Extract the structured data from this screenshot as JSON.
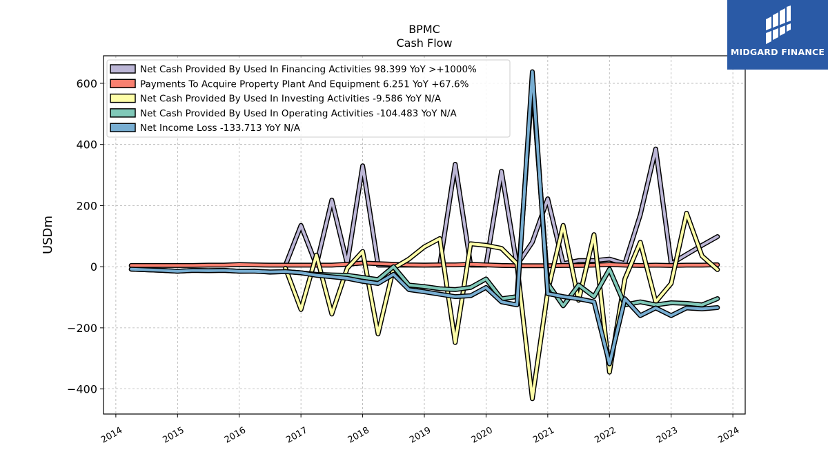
{
  "chart_data": {
    "type": "line",
    "title": "BPMC",
    "subtitle": "Cash Flow",
    "xlabel": "",
    "ylabel": "USDm",
    "grid": true,
    "legend_position": "top-left",
    "xlim": [
      2013.8,
      2024.2
    ],
    "ylim": [
      -482,
      690
    ],
    "x_ticks": [
      "2014",
      "2015",
      "2016",
      "2017",
      "2018",
      "2019",
      "2020",
      "2021",
      "2022",
      "2023",
      "2024"
    ],
    "y_ticks": [
      "600",
      "400",
      "200",
      "0",
      "−200",
      "−400"
    ],
    "y_tick_values": [
      600,
      400,
      200,
      0,
      -200,
      -400
    ],
    "series": [
      {
        "name": "Net Cash Provided By Used In Financing Activities",
        "legend": "Net Cash Provided By Used In Financing Activities  98.399 YoY >+1000%",
        "color": "#bcb6d6",
        "points": [
          [
            2016.75,
            5
          ],
          [
            2017.0,
            135
          ],
          [
            2017.25,
            5
          ],
          [
            2017.5,
            218
          ],
          [
            2017.75,
            10
          ],
          [
            2018.0,
            330
          ],
          [
            2018.25,
            5
          ],
          [
            2018.5,
            5
          ],
          [
            2018.75,
            5
          ],
          [
            2019.0,
            5
          ],
          [
            2019.25,
            5
          ],
          [
            2019.5,
            335
          ],
          [
            2019.75,
            5
          ],
          [
            2020.0,
            5
          ],
          [
            2020.25,
            312
          ],
          [
            2020.5,
            5
          ],
          [
            2020.75,
            80
          ],
          [
            2021.0,
            222
          ],
          [
            2021.25,
            10
          ],
          [
            2021.5,
            20
          ],
          [
            2021.75,
            20
          ],
          [
            2022.0,
            25
          ],
          [
            2022.25,
            10
          ],
          [
            2022.5,
            170
          ],
          [
            2022.75,
            385
          ],
          [
            2023.0,
            10
          ],
          [
            2023.25,
            40
          ],
          [
            2023.5,
            70
          ],
          [
            2023.75,
            98.399
          ]
        ]
      },
      {
        "name": "Payments To Acquire Property Plant And Equipment",
        "legend": "Payments To Acquire Property Plant And Equipment  6.251 YoY +67.6%",
        "color": "#f98070",
        "points": [
          [
            2014.25,
            4
          ],
          [
            2014.5,
            4
          ],
          [
            2014.75,
            4
          ],
          [
            2015.0,
            4
          ],
          [
            2015.25,
            4
          ],
          [
            2015.5,
            5
          ],
          [
            2015.75,
            5
          ],
          [
            2016.0,
            7
          ],
          [
            2016.25,
            6
          ],
          [
            2016.5,
            5
          ],
          [
            2016.75,
            5
          ],
          [
            2017.0,
            5
          ],
          [
            2017.25,
            5
          ],
          [
            2017.5,
            5
          ],
          [
            2017.75,
            8
          ],
          [
            2018.0,
            12
          ],
          [
            2018.25,
            10
          ],
          [
            2018.5,
            8
          ],
          [
            2018.75,
            6
          ],
          [
            2019.0,
            5
          ],
          [
            2019.25,
            6
          ],
          [
            2019.5,
            6
          ],
          [
            2019.75,
            8
          ],
          [
            2020.0,
            6
          ],
          [
            2020.25,
            4
          ],
          [
            2020.5,
            3
          ],
          [
            2020.75,
            3
          ],
          [
            2021.0,
            3
          ],
          [
            2021.25,
            4
          ],
          [
            2021.5,
            4
          ],
          [
            2021.75,
            5
          ],
          [
            2022.0,
            7
          ],
          [
            2022.25,
            5
          ],
          [
            2022.5,
            4
          ],
          [
            2022.75,
            5
          ],
          [
            2023.0,
            4
          ],
          [
            2023.25,
            5
          ],
          [
            2023.5,
            5
          ],
          [
            2023.75,
            6.251
          ]
        ]
      },
      {
        "name": "Net Cash Provided By Used In Investing Activities",
        "legend": "Net Cash Provided By Used In Investing Activities  -9.586 YoY N/A",
        "color": "#fefea8",
        "points": [
          [
            2016.75,
            -5
          ],
          [
            2017.0,
            -140
          ],
          [
            2017.25,
            38
          ],
          [
            2017.5,
            -155
          ],
          [
            2017.75,
            -5
          ],
          [
            2018.0,
            50
          ],
          [
            2018.25,
            -220
          ],
          [
            2018.5,
            -5
          ],
          [
            2018.75,
            25
          ],
          [
            2019.0,
            65
          ],
          [
            2019.25,
            92
          ],
          [
            2019.5,
            -248
          ],
          [
            2019.75,
            75
          ],
          [
            2020.0,
            70
          ],
          [
            2020.25,
            60
          ],
          [
            2020.5,
            10
          ],
          [
            2020.75,
            -432
          ],
          [
            2021.0,
            -80
          ],
          [
            2021.25,
            135
          ],
          [
            2021.5,
            -110
          ],
          [
            2021.75,
            105
          ],
          [
            2022.0,
            -345
          ],
          [
            2022.25,
            -40
          ],
          [
            2022.5,
            80
          ],
          [
            2022.75,
            -115
          ],
          [
            2023.0,
            -55
          ],
          [
            2023.25,
            175
          ],
          [
            2023.5,
            35
          ],
          [
            2023.75,
            -9.586
          ]
        ]
      },
      {
        "name": "Net Cash Provided By Used In Operating Activities",
        "legend": "Net Cash Provided By Used In Operating Activities  -104.483 YoY N/A",
        "color": "#80c8b8",
        "points": [
          [
            2014.25,
            -8
          ],
          [
            2014.5,
            -10
          ],
          [
            2014.75,
            -12
          ],
          [
            2015.0,
            -15
          ],
          [
            2015.25,
            -12
          ],
          [
            2015.5,
            -13
          ],
          [
            2015.75,
            -12
          ],
          [
            2016.0,
            -15
          ],
          [
            2016.25,
            -14
          ],
          [
            2016.5,
            -18
          ],
          [
            2016.75,
            -16
          ],
          [
            2017.0,
            -20
          ],
          [
            2017.25,
            -25
          ],
          [
            2017.5,
            -27
          ],
          [
            2017.75,
            -28
          ],
          [
            2018.0,
            -35
          ],
          [
            2018.25,
            -42
          ],
          [
            2018.5,
            0
          ],
          [
            2018.75,
            -60
          ],
          [
            2019.0,
            -65
          ],
          [
            2019.25,
            -72
          ],
          [
            2019.5,
            -75
          ],
          [
            2019.75,
            -68
          ],
          [
            2020.0,
            -40
          ],
          [
            2020.25,
            -105
          ],
          [
            2020.5,
            -98
          ],
          [
            2020.75,
            600
          ],
          [
            2021.0,
            -55
          ],
          [
            2021.25,
            -128
          ],
          [
            2021.5,
            -60
          ],
          [
            2021.75,
            -98
          ],
          [
            2022.0,
            -8
          ],
          [
            2022.25,
            -125
          ],
          [
            2022.5,
            -115
          ],
          [
            2022.75,
            -125
          ],
          [
            2023.0,
            -118
          ],
          [
            2023.25,
            -120
          ],
          [
            2023.5,
            -125
          ],
          [
            2023.75,
            -104.483
          ]
        ]
      },
      {
        "name": "Net Income Loss",
        "legend": "Net Income Loss  -133.713 YoY N/A",
        "color": "#78aed2",
        "points": [
          [
            2014.25,
            -8
          ],
          [
            2014.5,
            -10
          ],
          [
            2014.75,
            -12
          ],
          [
            2015.0,
            -15
          ],
          [
            2015.25,
            -12
          ],
          [
            2015.5,
            -13
          ],
          [
            2015.75,
            -12
          ],
          [
            2016.0,
            -15
          ],
          [
            2016.25,
            -15
          ],
          [
            2016.5,
            -17
          ],
          [
            2016.75,
            -16
          ],
          [
            2017.0,
            -20
          ],
          [
            2017.25,
            -28
          ],
          [
            2017.5,
            -33
          ],
          [
            2017.75,
            -38
          ],
          [
            2018.0,
            -48
          ],
          [
            2018.25,
            -55
          ],
          [
            2018.5,
            -25
          ],
          [
            2018.75,
            -75
          ],
          [
            2019.0,
            -82
          ],
          [
            2019.25,
            -90
          ],
          [
            2019.5,
            -98
          ],
          [
            2019.75,
            -95
          ],
          [
            2020.0,
            -68
          ],
          [
            2020.25,
            -115
          ],
          [
            2020.5,
            -125
          ],
          [
            2020.75,
            638
          ],
          [
            2021.0,
            -88
          ],
          [
            2021.25,
            -98
          ],
          [
            2021.5,
            -105
          ],
          [
            2021.75,
            -115
          ],
          [
            2022.0,
            -318
          ],
          [
            2022.25,
            -105
          ],
          [
            2022.5,
            -160
          ],
          [
            2022.75,
            -135
          ],
          [
            2023.0,
            -160
          ],
          [
            2023.25,
            -135
          ],
          [
            2023.5,
            -138
          ],
          [
            2023.75,
            -133.713
          ]
        ]
      }
    ]
  },
  "logo": {
    "text": "MIDGARD FINANCE",
    "background": "#2a5aa6"
  }
}
